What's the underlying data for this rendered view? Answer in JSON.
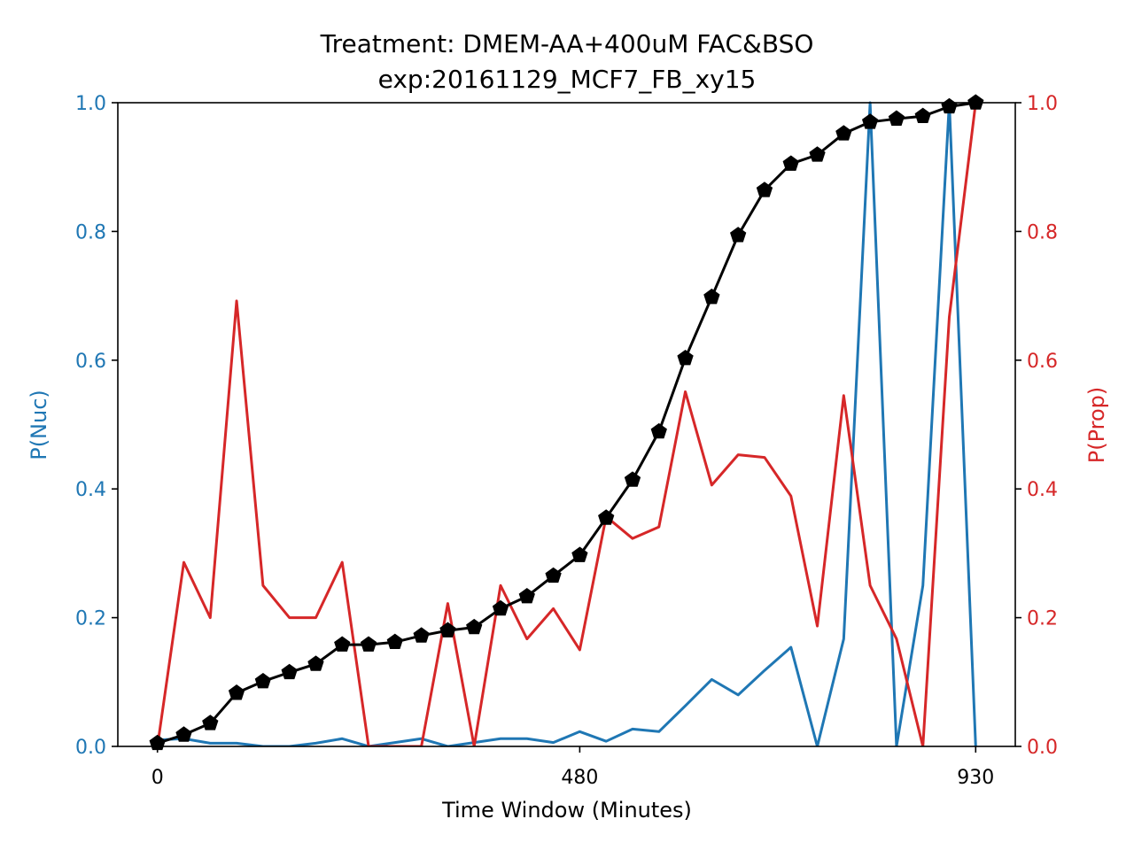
{
  "chart_data": {
    "type": "line",
    "title": "Treatment: DMEM-AA+400uM FAC&BSO",
    "subtitle": "exp:20161129_MCF7_FB_xy15",
    "xlabel": "Time Window (Minutes)",
    "ylabel_left": "P(Nuc)",
    "ylabel_right": "P(Prop)",
    "xlim": [
      -45,
      975
    ],
    "ylim_left": [
      0,
      1
    ],
    "ylim_right": [
      0,
      1
    ],
    "x_ticks": [
      0,
      480,
      930
    ],
    "x_tick_labels": [
      "0",
      "480",
      "930"
    ],
    "y_ticks_left": [
      "0.0",
      "0.2",
      "0.4",
      "0.6",
      "0.8",
      "1.0"
    ],
    "y_ticks_right": [
      "0.0",
      "0.2",
      "0.4",
      "0.6",
      "0.8",
      "1.0"
    ],
    "grid": false,
    "colors": {
      "left_axis": "#1f77b4",
      "right_axis": "#d62728",
      "cumulative": "#000000"
    },
    "x": [
      0,
      30,
      60,
      90,
      120,
      150,
      180,
      210,
      240,
      270,
      300,
      330,
      360,
      390,
      420,
      450,
      480,
      510,
      540,
      570,
      600,
      630,
      660,
      690,
      720,
      750,
      780,
      810,
      840,
      870,
      900,
      930
    ],
    "series": [
      {
        "axis": "left",
        "color": "#1f77b4",
        "marker": "none",
        "values": [
          0.01,
          0.012,
          0.005,
          0.005,
          0.0,
          0.0,
          0.005,
          0.012,
          0.0,
          0.006,
          0.012,
          0.0,
          0.006,
          0.012,
          0.012,
          0.006,
          0.023,
          0.008,
          0.027,
          0.023,
          0.063,
          0.104,
          0.08,
          0.118,
          0.154,
          0.0,
          0.167,
          1.0,
          0.0,
          0.25,
          1.0,
          0.0
        ]
      },
      {
        "axis": "right",
        "color": "#d62728",
        "marker": "none",
        "values": [
          0.0,
          0.286,
          0.2,
          0.692,
          0.25,
          0.2,
          0.2,
          0.286,
          0.0,
          0.0,
          0.0,
          0.222,
          0.0,
          0.25,
          0.167,
          0.214,
          0.15,
          0.357,
          0.323,
          0.341,
          0.551,
          0.406,
          0.453,
          0.449,
          0.389,
          0.187,
          0.545,
          0.25,
          0.167,
          0.0,
          0.667,
          1.0
        ]
      },
      {
        "axis": "left",
        "color": "#000000",
        "marker": "pentagon",
        "values": [
          0.005,
          0.018,
          0.036,
          0.083,
          0.101,
          0.115,
          0.128,
          0.158,
          0.158,
          0.162,
          0.172,
          0.18,
          0.185,
          0.214,
          0.233,
          0.265,
          0.297,
          0.355,
          0.414,
          0.489,
          0.603,
          0.698,
          0.794,
          0.864,
          0.905,
          0.919,
          0.952,
          0.97,
          0.975,
          0.979,
          0.994,
          1.0
        ]
      }
    ]
  }
}
